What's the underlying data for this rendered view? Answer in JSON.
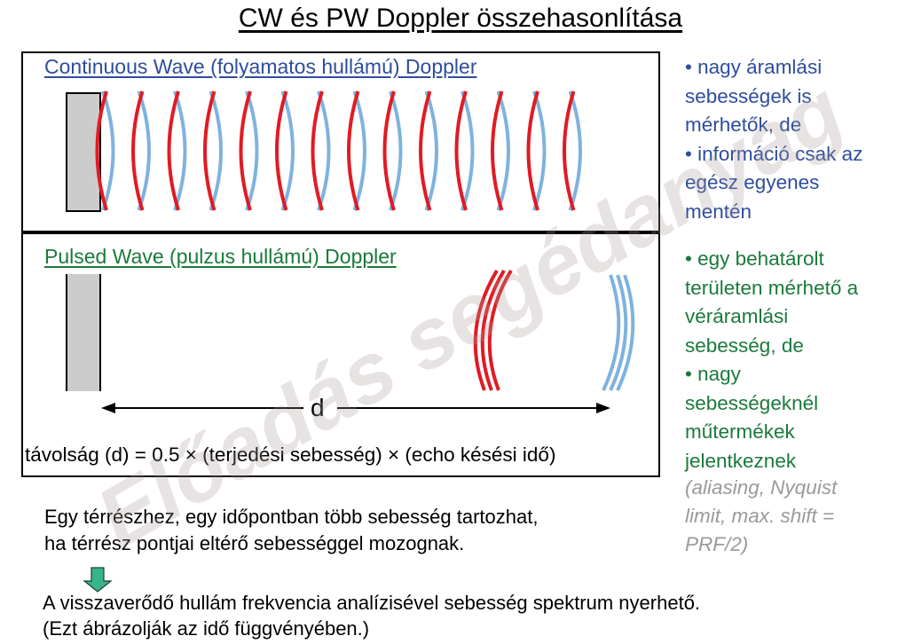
{
  "title": "CW és PW Doppler összehasonlítása",
  "cw": {
    "heading": "Continuous Wave (folyamatos hullámú) Doppler",
    "notes": "• nagy áramlási\nsebességek is\nmérhetők, de\n• információ csak az\negész egyenes\nmentén"
  },
  "pw": {
    "heading": "Pulsed Wave (pulzus hullámú) Doppler",
    "distance_label": "d",
    "formula": "távolság (d) = 0.5 × (terjedési sebesség) × (echo késési idő)",
    "notes": "• egy behatárolt\nterületen mérhető a\nvéráramlási\nsebesség, de\n• nagy\nsebességeknél\nműtermékek\njelentkeznek",
    "aliasing_note": "(aliasing, Nyquist\nlimit, max. shift =\nPRF/2)"
  },
  "note": {
    "line1": "Egy térrészhez, egy időpontban több sebesség tartozhat,",
    "line2": "ha térrész pontjai eltérő sebességgel mozognak."
  },
  "conclusion": {
    "line1": "A visszaverődő hullám frekvencia analízisével sebesség spektrum nyerhető.",
    "line2": "(Ezt ábrázolják az idő függvényében.)"
  },
  "watermark": "Előadás segédanyag",
  "colors": {
    "cw_text": "#2f4d9e",
    "pw_text": "#1a7a3c",
    "wave_red": "#e01b24",
    "wave_blue": "#7fb2de",
    "transducer": "#cccccc",
    "arrow": "#38b48c"
  }
}
